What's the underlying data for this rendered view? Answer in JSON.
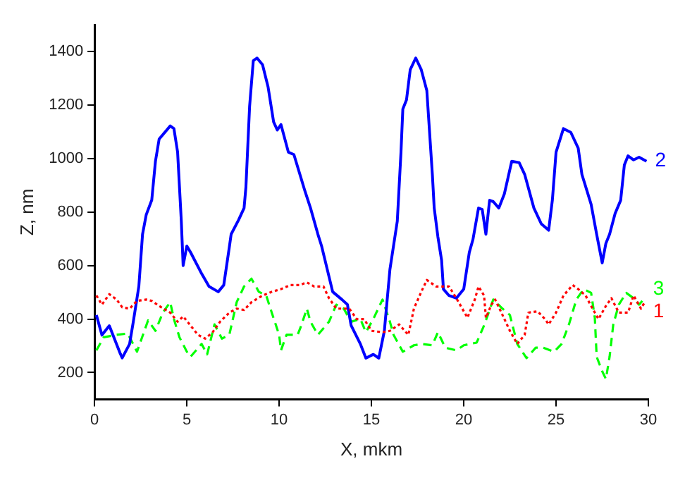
{
  "chart_data": {
    "type": "line",
    "xlabel": "X, mkm",
    "ylabel": "Z, nm",
    "xlim": [
      0,
      30
    ],
    "xticks": [
      0,
      5,
      10,
      15,
      20,
      25,
      30
    ],
    "ylim": [
      100,
      1500
    ],
    "yticks": [
      200,
      400,
      600,
      800,
      1000,
      1200,
      1400
    ],
    "grid": false,
    "legend": false,
    "marker": "none",
    "series": [
      {
        "name": "1",
        "color": "#ff0000",
        "line_style": "dotted",
        "x": [
          0.1,
          0.4,
          0.8,
          1.2,
          1.5,
          1.9,
          2.3,
          2.8,
          3.1,
          3.5,
          4.1,
          4.5,
          4.8,
          5.2,
          5.6,
          6.0,
          6.4,
          6.8,
          7.3,
          7.7,
          8.1,
          8.5,
          9.1,
          9.6,
          10.1,
          10.6,
          11.1,
          11.5,
          11.9,
          12.4,
          12.7,
          13.1,
          13.8,
          14.2,
          14.6,
          15.0,
          15.6,
          16.0,
          16.5,
          17.0,
          17.3,
          17.7,
          18.0,
          18.5,
          19.2,
          19.6,
          20.2,
          20.6,
          20.8,
          21.1,
          21.2,
          21.5,
          21.7,
          22.1,
          22.5,
          22.9,
          23.3,
          23.5,
          24.0,
          24.4,
          24.6,
          25.0,
          25.4,
          25.9,
          26.2,
          26.6,
          26.9,
          27.3,
          27.7,
          28.0,
          28.4,
          28.9,
          29.2,
          29.6,
          29.8
        ],
        "values": [
          488,
          454,
          493,
          473,
          444,
          439,
          468,
          473,
          468,
          449,
          424,
          390,
          410,
          376,
          341,
          327,
          351,
          390,
          424,
          439,
          434,
          463,
          488,
          502,
          512,
          527,
          527,
          537,
          522,
          522,
          478,
          439,
          439,
          400,
          400,
          356,
          351,
          356,
          380,
          341,
          439,
          502,
          546,
          522,
          522,
          478,
          405,
          473,
          522,
          488,
          405,
          454,
          473,
          415,
          356,
          307,
          341,
          424,
          429,
          400,
          380,
          424,
          488,
          527,
          512,
          488,
          449,
          400,
          449,
          478,
          424,
          424,
          488,
          439,
          463
        ]
      },
      {
        "name": "2",
        "color": "#0000ff",
        "line_style": "solid",
        "x": [
          0.1,
          0.4,
          0.8,
          1.0,
          1.4,
          1.5,
          1.9,
          2.1,
          2.4,
          2.6,
          2.8,
          3.1,
          3.3,
          3.5,
          4.1,
          4.3,
          4.5,
          4.7,
          4.8,
          5.0,
          5.2,
          5.8,
          6.2,
          6.7,
          7.0,
          7.3,
          7.4,
          7.8,
          8.1,
          8.2,
          8.4,
          8.6,
          8.8,
          9.1,
          9.4,
          9.7,
          9.9,
          10.1,
          10.5,
          10.8,
          11.4,
          11.7,
          12.1,
          12.3,
          12.9,
          13.4,
          13.7,
          13.9,
          14.4,
          14.7,
          15.1,
          15.4,
          15.7,
          16.0,
          16.4,
          16.6,
          16.7,
          16.9,
          17.1,
          17.4,
          17.7,
          18.0,
          18.3,
          18.4,
          18.6,
          18.8,
          18.9,
          19.2,
          19.6,
          20.0,
          20.3,
          20.5,
          20.8,
          21.0,
          21.2,
          21.4,
          21.6,
          21.9,
          22.2,
          22.6,
          23.0,
          23.3,
          23.8,
          24.2,
          24.6,
          24.8,
          25.0,
          25.4,
          25.8,
          26.2,
          26.4,
          26.9,
          27.2,
          27.5,
          27.7,
          27.9,
          28.2,
          28.5,
          28.7,
          28.9,
          29.2,
          29.5,
          29.9
        ],
        "values": [
          415,
          340,
          375,
          340,
          270,
          255,
          307,
          390,
          522,
          717,
          790,
          845,
          990,
          1073,
          1122,
          1112,
          1024,
          766,
          600,
          673,
          650,
          570,
          522,
          502,
          527,
          668,
          717,
          770,
          815,
          893,
          1195,
          1366,
          1376,
          1351,
          1268,
          1137,
          1107,
          1127,
          1024,
          1015,
          878,
          815,
          717,
          673,
          502,
          473,
          454,
          376,
          307,
          254,
          268,
          254,
          356,
          585,
          766,
          1024,
          1185,
          1220,
          1332,
          1376,
          1332,
          1254,
          941,
          815,
          707,
          620,
          512,
          488,
          478,
          512,
          649,
          698,
          815,
          810,
          717,
          844,
          839,
          815,
          868,
          990,
          985,
          941,
          815,
          756,
          732,
          844,
          1024,
          1112,
          1098,
          1039,
          941,
          829,
          717,
          610,
          683,
          717,
          795,
          844,
          976,
          1010,
          995,
          1005,
          990
        ]
      },
      {
        "name": "3",
        "color": "#00ff00",
        "line_style": "dashed",
        "x": [
          0.1,
          0.5,
          1.2,
          1.8,
          2.3,
          2.7,
          2.9,
          3.3,
          3.7,
          4.1,
          4.3,
          4.6,
          5.0,
          5.2,
          5.8,
          6.1,
          6.5,
          6.9,
          7.3,
          7.7,
          8.1,
          8.5,
          8.9,
          9.3,
          9.6,
          10.0,
          10.1,
          10.4,
          11.0,
          11.2,
          11.5,
          11.7,
          12.1,
          12.7,
          13.1,
          13.5,
          13.9,
          14.4,
          14.7,
          15.1,
          15.6,
          16.0,
          16.2,
          16.7,
          17.3,
          17.7,
          18.3,
          18.6,
          19.0,
          19.6,
          20.0,
          20.7,
          21.1,
          21.6,
          22.1,
          22.5,
          22.9,
          23.4,
          23.9,
          24.3,
          24.9,
          25.3,
          25.7,
          26.1,
          26.5,
          26.9,
          27.1,
          27.2,
          27.5,
          27.7,
          27.9,
          28.1,
          28.4,
          28.8,
          29.2,
          29.5,
          29.8
        ],
        "values": [
          283,
          332,
          341,
          346,
          278,
          356,
          395,
          356,
          424,
          463,
          400,
          332,
          278,
          259,
          307,
          268,
          380,
          327,
          341,
          463,
          522,
          551,
          502,
          488,
          424,
          341,
          283,
          341,
          341,
          376,
          439,
          390,
          341,
          390,
          454,
          439,
          390,
          400,
          351,
          400,
          473,
          390,
          341,
          278,
          302,
          307,
          302,
          351,
          293,
          283,
          302,
          312,
          376,
          473,
          439,
          415,
          307,
          254,
          293,
          293,
          278,
          307,
          380,
          473,
          512,
          498,
          405,
          259,
          205,
          176,
          259,
          380,
          454,
          498,
          478,
          454,
          478
        ]
      }
    ]
  }
}
